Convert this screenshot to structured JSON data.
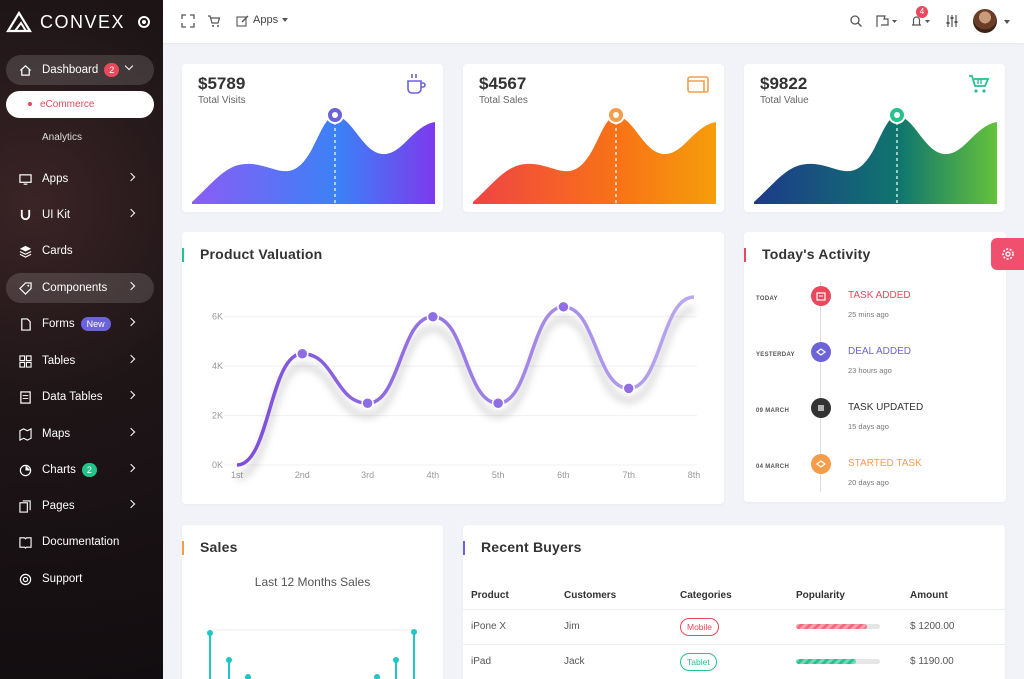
{
  "brand": {
    "name": "CONVEX"
  },
  "sidebar": {
    "items": [
      {
        "label": "Dashboard",
        "badge": "2",
        "icon": "home-icon"
      },
      {
        "label": "Apps",
        "icon": "monitor-icon"
      },
      {
        "label": "UI Kit",
        "icon": "magnet-icon"
      },
      {
        "label": "Cards",
        "icon": "layers-icon"
      },
      {
        "label": "Components",
        "icon": "tag-icon"
      },
      {
        "label": "Forms",
        "badge": "New",
        "icon": "file-icon"
      },
      {
        "label": "Tables",
        "icon": "grid-icon"
      },
      {
        "label": "Data Tables",
        "icon": "table-icon"
      },
      {
        "label": "Maps",
        "icon": "map-icon"
      },
      {
        "label": "Charts",
        "badge": "2",
        "icon": "pie-icon"
      },
      {
        "label": "Pages",
        "icon": "pages-icon"
      },
      {
        "label": "Documentation",
        "icon": "book-icon"
      },
      {
        "label": "Support",
        "icon": "lifebuoy-icon"
      }
    ],
    "sub_items": {
      "active": "eCommerce",
      "other": "Analytics"
    }
  },
  "topbar": {
    "apps_label": "Apps",
    "notification_count": "4"
  },
  "stats": [
    {
      "value": "$5789",
      "label": "Total Visits",
      "icon": "coffee-icon",
      "icon_color": "#6d63d8"
    },
    {
      "value": "$4567",
      "label": "Total Sales",
      "icon": "wallet-icon",
      "icon_color": "#f59d4a"
    },
    {
      "value": "$9822",
      "label": "Total Value",
      "icon": "cart-icon",
      "icon_color": "#25c28c"
    }
  ],
  "valuation": {
    "title": "Product Valuation",
    "accent": "#25c28c",
    "chart_data": {
      "type": "line",
      "x": [
        "1st",
        "2nd",
        "3rd",
        "4th",
        "5th",
        "6th",
        "7th",
        "8th"
      ],
      "y_ticks": [
        "0K",
        "2K",
        "4K",
        "6K"
      ],
      "ylim": [
        0,
        7000
      ],
      "series": [
        {
          "values": [
            0,
            4500,
            2500,
            6000,
            2500,
            6400,
            3100,
            6800
          ]
        }
      ]
    }
  },
  "activity": {
    "title": "Today's Activity",
    "accent": "#e8495c",
    "items": [
      {
        "date": "TODAY",
        "title": "TASK ADDED",
        "time": "25 mins ago",
        "color": "#e8495c"
      },
      {
        "date": "YESTERDAY",
        "title": "DEAL ADDED",
        "time": "23 hours ago",
        "color": "#6d63d8"
      },
      {
        "date": "09 MARCH",
        "title": "TASK UPDATED",
        "time": "15 days ago",
        "color": "#333333"
      },
      {
        "date": "04 MARCH",
        "title": "STARTED TASK",
        "time": "20 days ago",
        "color": "#f59d4a"
      }
    ]
  },
  "sales": {
    "title": "Sales",
    "subtitle": "Last 12 Months Sales",
    "accent": "#f59d4a"
  },
  "buyers": {
    "title": "Recent Buyers",
    "accent": "#6d63d8",
    "columns": [
      "Product",
      "Customers",
      "Categories",
      "Popularity",
      "Amount"
    ],
    "rows": [
      {
        "product": "iPone X",
        "customer": "Jim",
        "category": "Mobile",
        "category_color": "#e8495c",
        "popularity": 0.85,
        "popularity_color": "#f06a7e",
        "amount": "$ 1200.00"
      },
      {
        "product": "iPad",
        "customer": "Jack",
        "category": "Tablet",
        "category_color": "#25c28c",
        "popularity": 0.72,
        "popularity_color": "#25c28c",
        "amount": "$ 1190.00"
      }
    ]
  }
}
